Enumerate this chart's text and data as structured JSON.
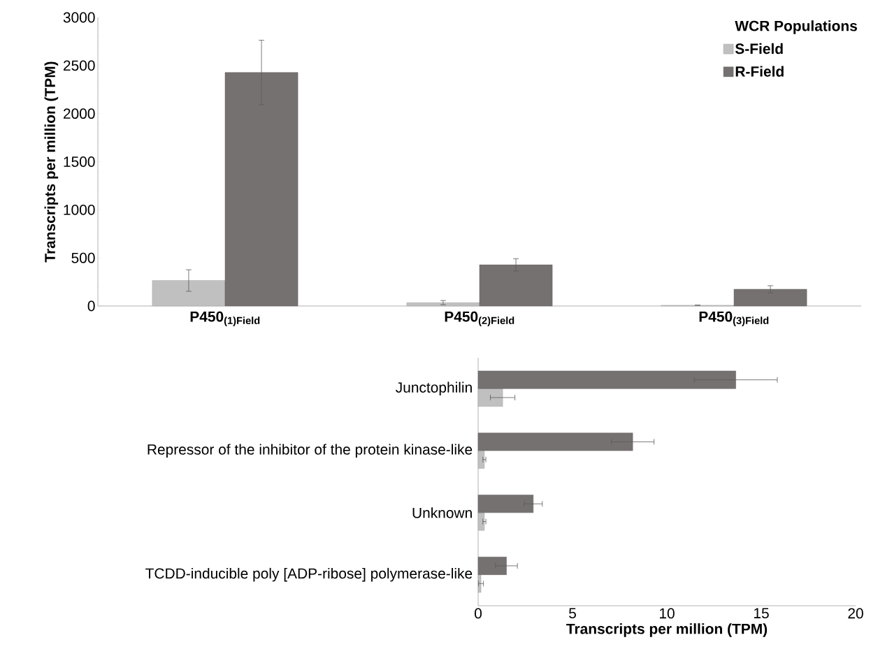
{
  "chart_data": [
    {
      "type": "bar",
      "ylabel": "Transcripts per million (TPM)",
      "legend_title": "WCR Populations",
      "legend": "top right",
      "categories": [
        "P450$_{(1)Field}$",
        "P450$_{(2)Field}$",
        "P450$_{(3)Field}$"
      ],
      "series": [
        {
          "name": "S-Field",
          "color": "#c0c0c0",
          "values": [
            265,
            35,
            8
          ],
          "errors": [
            112,
            22,
            null
          ]
        },
        {
          "name": "R-Field",
          "color": "#767171",
          "values": [
            2428,
            428,
            174
          ],
          "errors": [
            335,
            64,
            37
          ]
        }
      ],
      "ylim": [
        0,
        3000
      ],
      "yticks": [
        0,
        500,
        1000,
        1500,
        2000,
        2500,
        3000
      ]
    },
    {
      "type": "bar",
      "orientation": "horizontal",
      "xlabel": "Transcripts per million (TPM)",
      "categories": [
        "Junctophilin",
        "Repressor of the inhibitor of the protein kinase-like",
        "Unknown",
        "TCDD-inducible poly [ADP-ribose] polymerase-like"
      ],
      "series": [
        {
          "color": "#c0c0c0",
          "values": [
            1.3,
            0.33,
            0.33,
            0.15
          ],
          "errors": [
            0.65,
            0.08,
            0.08,
            0.13
          ]
        },
        {
          "color": "#767171",
          "values": [
            13.65,
            8.19,
            2.92,
            1.5
          ],
          "errors": [
            2.2,
            1.13,
            0.48,
            0.58
          ]
        }
      ],
      "xlim": [
        0,
        20
      ],
      "xticks": [
        0,
        5,
        10,
        15,
        20
      ]
    }
  ]
}
